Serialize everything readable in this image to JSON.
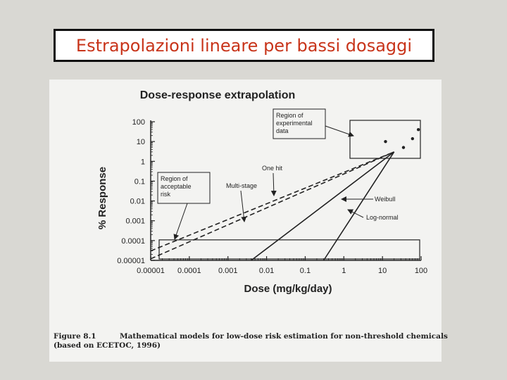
{
  "slide": {
    "title": "Estrapolazioni lineare per bassi dosaggi"
  },
  "figure": {
    "heading": "Dose-response extrapolation",
    "caption_number": "Figure 8.1",
    "caption_text": "Mathematical models for low-dose risk estimation for non-threshold chemicals",
    "caption_source": "(based on ECETOC, 1996)"
  },
  "chart_data": {
    "type": "line",
    "title": "Dose-response extrapolation",
    "xlabel": "Dose (mg/kg/day)",
    "ylabel": "% Response",
    "xscale": "log",
    "yscale": "log",
    "x_ticks": [
      "0.00001",
      "0.0001",
      "0.001",
      "0.01",
      "0.1",
      "1",
      "10",
      "100"
    ],
    "y_ticks": [
      "100",
      "10",
      "1",
      "0.1",
      "0.01",
      "0.001",
      "0.0001",
      "0.00001"
    ],
    "xlim": [
      1e-05,
      100
    ],
    "ylim": [
      1e-05,
      100
    ],
    "series": [
      {
        "name": "One hit",
        "style": "dashed",
        "x": [
          1e-05,
          20
        ],
        "y": [
          3e-05,
          3
        ]
      },
      {
        "name": "Multi-stage",
        "style": "dashed",
        "x": [
          1e-05,
          20
        ],
        "y": [
          1.2e-05,
          3
        ]
      },
      {
        "name": "Weibull",
        "style": "solid",
        "x": [
          0.004,
          20
        ],
        "y": [
          1e-05,
          3
        ]
      },
      {
        "name": "Log-normal",
        "style": "solid",
        "x": [
          0.3,
          3,
          20
        ],
        "y": [
          1e-05,
          0.01,
          3
        ]
      }
    ],
    "experimental_points": [
      {
        "x": 12,
        "y": 10
      },
      {
        "x": 35,
        "y": 5
      },
      {
        "x": 60,
        "y": 14
      },
      {
        "x": 85,
        "y": 40
      }
    ],
    "regions": {
      "experimental_label": "Region of\nexperimental\ndata",
      "acceptable_label": "Region of\nacceptable\nrisk",
      "acceptable_upper_y": 0.0001
    },
    "annotations": [
      "One hit",
      "Multi-stage",
      "Weibull",
      "Log-normal"
    ],
    "colors": {
      "ink": "#222222",
      "background": "#f3f3f1"
    }
  }
}
